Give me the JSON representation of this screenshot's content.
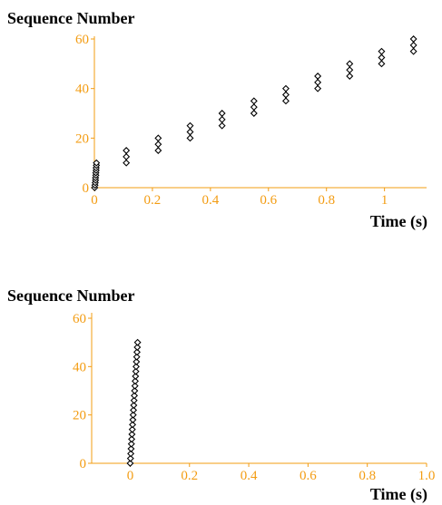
{
  "axis_color": "#f39c12",
  "mark_color": "#000000",
  "chart_data": [
    {
      "type": "scatter",
      "ylabel": "Sequence Number",
      "xlabel": "Time (s)",
      "xlim": [
        0,
        1.12
      ],
      "ylim": [
        0,
        60
      ],
      "xticks": [
        0,
        0.2,
        0.4,
        0.6,
        0.8,
        1
      ],
      "xtick_labels": [
        "0",
        "0.2",
        "0.4",
        "0.6",
        "0.8",
        "1"
      ],
      "yticks": [
        0,
        20,
        40,
        60
      ],
      "ytick_labels": [
        "0",
        "20",
        "40",
        "60"
      ],
      "series": [
        {
          "points": [
            [
              0.001,
              0
            ],
            [
              0.002,
              1
            ],
            [
              0.003,
              2
            ],
            [
              0.004,
              3
            ],
            [
              0.004,
              4
            ],
            [
              0.005,
              5
            ],
            [
              0.005,
              6
            ],
            [
              0.006,
              7
            ],
            [
              0.006,
              8
            ],
            [
              0.007,
              9
            ],
            [
              0.007,
              10
            ],
            [
              0.11,
              10
            ],
            [
              0.11,
              12.5
            ],
            [
              0.11,
              15
            ],
            [
              0.22,
              15
            ],
            [
              0.22,
              17.5
            ],
            [
              0.22,
              20
            ],
            [
              0.33,
              20
            ],
            [
              0.33,
              22.5
            ],
            [
              0.33,
              25
            ],
            [
              0.44,
              25
            ],
            [
              0.44,
              27.5
            ],
            [
              0.44,
              30
            ],
            [
              0.55,
              30
            ],
            [
              0.55,
              32.5
            ],
            [
              0.55,
              35
            ],
            [
              0.66,
              35
            ],
            [
              0.66,
              37.5
            ],
            [
              0.66,
              40
            ],
            [
              0.77,
              40
            ],
            [
              0.77,
              42.5
            ],
            [
              0.77,
              45
            ],
            [
              0.88,
              45
            ],
            [
              0.88,
              47.5
            ],
            [
              0.88,
              50
            ],
            [
              0.99,
              50
            ],
            [
              0.99,
              52.5
            ],
            [
              0.99,
              55
            ],
            [
              1.1,
              55
            ],
            [
              1.1,
              57.5
            ],
            [
              1.1,
              60
            ]
          ],
          "connect_groups": true
        }
      ]
    },
    {
      "type": "scatter",
      "ylabel": "Sequence Number",
      "xlabel": "Time (s)",
      "xlim": [
        -0.13,
        1.0
      ],
      "ylim": [
        0,
        60
      ],
      "xticks": [
        0,
        0.2,
        0.4,
        0.6,
        0.8,
        1.0
      ],
      "xtick_labels": [
        "0",
        "0.2",
        "0.4",
        "0.6",
        "0.8",
        "1.0"
      ],
      "yticks": [
        0,
        20,
        40,
        60
      ],
      "ytick_labels": [
        "0",
        "20",
        "40",
        "60"
      ],
      "series": [
        {
          "points": [
            [
              0.0,
              0
            ],
            [
              0.001,
              2
            ],
            [
              0.002,
              4
            ],
            [
              0.003,
              6
            ],
            [
              0.004,
              8
            ],
            [
              0.005,
              10
            ],
            [
              0.006,
              12
            ],
            [
              0.007,
              14
            ],
            [
              0.008,
              16
            ],
            [
              0.009,
              18
            ],
            [
              0.01,
              20
            ],
            [
              0.011,
              22
            ],
            [
              0.012,
              24
            ],
            [
              0.013,
              26
            ],
            [
              0.014,
              28
            ],
            [
              0.015,
              30
            ],
            [
              0.016,
              32
            ],
            [
              0.017,
              34
            ],
            [
              0.018,
              36
            ],
            [
              0.019,
              38
            ],
            [
              0.02,
              40
            ],
            [
              0.021,
              42
            ],
            [
              0.022,
              44
            ],
            [
              0.023,
              46
            ],
            [
              0.024,
              48
            ],
            [
              0.025,
              50
            ]
          ],
          "connect_groups": false
        }
      ]
    }
  ]
}
